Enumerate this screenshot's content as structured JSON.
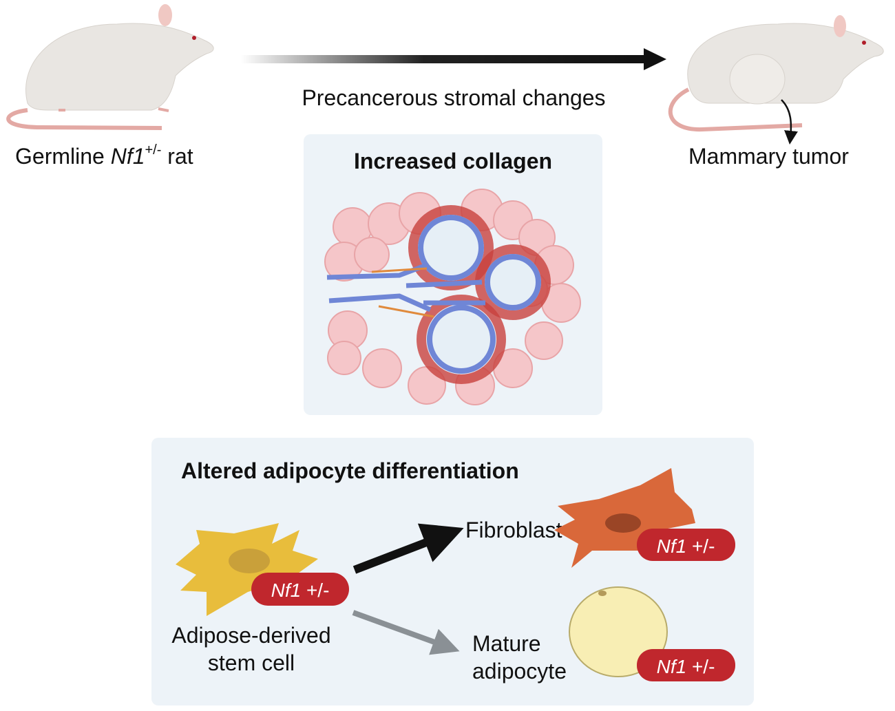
{
  "top": {
    "left_label": {
      "prefix": "Germline ",
      "gene": "Nf1",
      "sup": "+/-",
      "suffix": " rat"
    },
    "arrow_label": "Precancerous stromal changes",
    "right_label": "Mammary tumor"
  },
  "collagen_panel": {
    "title": "Increased collagen"
  },
  "adipocyte_panel": {
    "title": "Altered adipocyte differentiation",
    "stem_cell_label": [
      "Adipose-derived",
      "stem cell"
    ],
    "fibroblast_label": "Fibroblast",
    "mature_label": [
      "Mature",
      "adipocyte"
    ],
    "badge": {
      "gene": "Nf1",
      "genotype": " +/-"
    }
  },
  "colors": {
    "panel_bg": "#edf3f8",
    "badge": "#c0272d",
    "stem_cell": "#e8bd3c",
    "fibroblast": "#d9683a",
    "adipocyte": "#f8eeb4",
    "adipose_tissue": "#f6c2c4",
    "epithelium": "#6f86d6",
    "collagen": "#c9423e"
  }
}
